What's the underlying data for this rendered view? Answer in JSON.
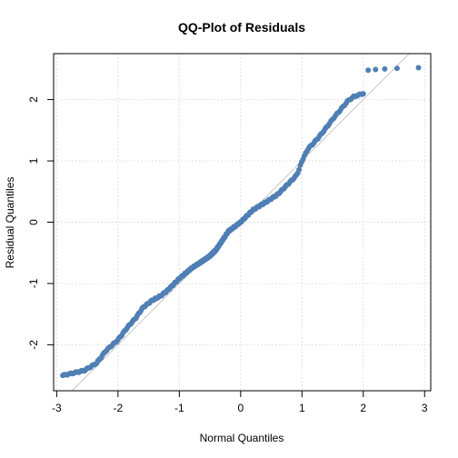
{
  "chart_data": {
    "type": "scatter",
    "title": "QQ-Plot of Residuals",
    "xlabel": "Normal Quantiles",
    "ylabel": "Residual Quantiles",
    "xlim": [
      -3.05,
      3.1
    ],
    "ylim": [
      -2.75,
      2.75
    ],
    "xticks": [
      -3,
      -2,
      -1,
      0,
      1,
      2,
      3
    ],
    "yticks": [
      -2,
      -1,
      0,
      1,
      2
    ],
    "grid": true,
    "reference_line": {
      "intercept": 0,
      "slope": 1
    },
    "anchors": {
      "x": [
        -2.9,
        -2.55,
        -2.35,
        -2.2,
        -2.0,
        -1.85,
        -1.7,
        -1.6,
        -1.45,
        -1.3,
        -1.2,
        -1.0,
        -0.8,
        -0.6,
        -0.5,
        -0.4,
        -0.3,
        -0.2,
        0.0,
        0.2,
        0.4,
        0.6,
        0.8,
        0.9,
        0.95,
        1.0,
        1.1,
        1.2,
        1.35,
        1.5,
        1.6,
        1.75,
        1.85,
        2.0
      ],
      "y": [
        -2.5,
        -2.42,
        -2.3,
        -2.1,
        -1.92,
        -1.72,
        -1.55,
        -1.4,
        -1.28,
        -1.2,
        -1.12,
        -0.92,
        -0.75,
        -0.62,
        -0.55,
        -0.45,
        -0.3,
        -0.15,
        0.0,
        0.2,
        0.32,
        0.45,
        0.65,
        0.75,
        0.85,
        1.0,
        1.2,
        1.3,
        1.48,
        1.68,
        1.8,
        1.98,
        2.05,
        2.1
      ]
    },
    "tail_points": [
      {
        "x": 2.08,
        "y": 2.48
      },
      {
        "x": 2.2,
        "y": 2.49
      },
      {
        "x": 2.35,
        "y": 2.5
      },
      {
        "x": 2.55,
        "y": 2.51
      },
      {
        "x": 2.9,
        "y": 2.52
      }
    ],
    "n_points": 300,
    "colors": {
      "points": "#4f7fb4",
      "reference_line": "#c8c8c8",
      "grid": "#d9d9d9",
      "frame": "#000000"
    }
  }
}
